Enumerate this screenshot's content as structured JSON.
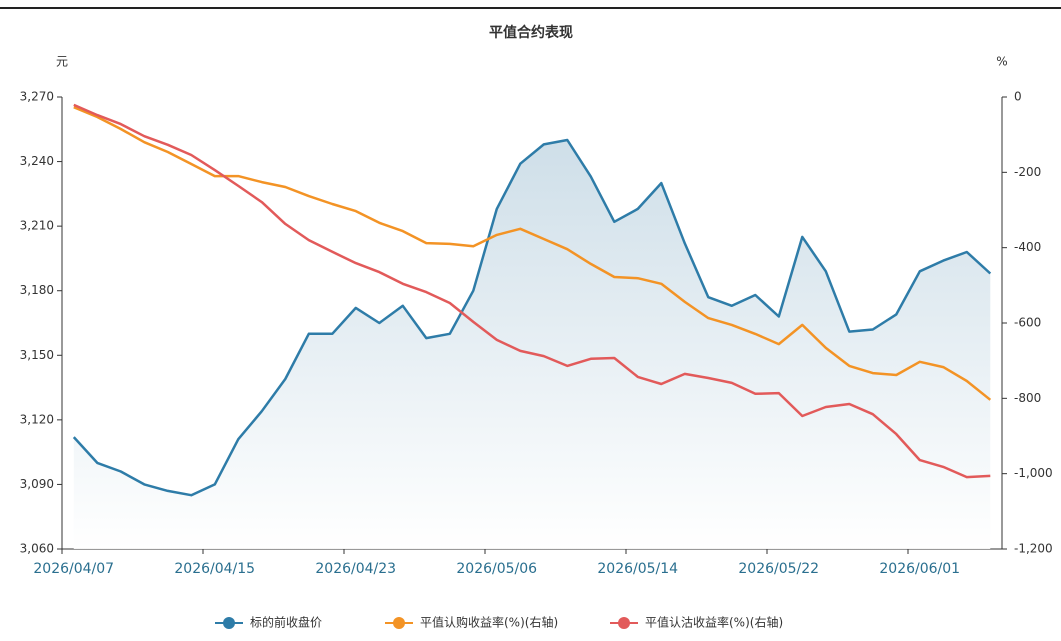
{
  "chart_data": {
    "type": "line",
    "title": "平值合约表现",
    "y_label": "元",
    "y2_label": "%",
    "categories": [
      "2026/04/07",
      null,
      null,
      null,
      null,
      null,
      "2026/04/15",
      null,
      null,
      null,
      null,
      null,
      "2026/04/23",
      null,
      null,
      null,
      null,
      null,
      "2026/05/06",
      null,
      null,
      null,
      null,
      null,
      "2026/05/14",
      null,
      null,
      null,
      null,
      null,
      "2026/05/22",
      null,
      null,
      null,
      null,
      null,
      "2026/06/01",
      null,
      null,
      null
    ],
    "ylim": [
      3060,
      3270
    ],
    "yticks": [
      {
        "value": 3060,
        "label": "3,060"
      },
      {
        "value": 3090,
        "label": "3,090"
      },
      {
        "value": 3120,
        "label": "3,120"
      },
      {
        "value": 3150,
        "label": "3,150"
      },
      {
        "value": 3180,
        "label": "3,180"
      },
      {
        "value": 3210,
        "label": "3,210"
      },
      {
        "value": 3240,
        "label": "3,240"
      },
      {
        "value": 3270,
        "label": "3,270"
      }
    ],
    "y2lim": [
      -1200,
      0
    ],
    "y2ticks": [
      {
        "value": -1200,
        "label": "-1,200"
      },
      {
        "value": -1000,
        "label": "-1,000"
      },
      -800,
      -600,
      -400,
      -200,
      0
    ],
    "series": [
      {
        "name": "标的前收盘价",
        "color": "#2e7ca8",
        "area": true,
        "values": [
          3112,
          3100,
          3096,
          3090,
          3087,
          3085,
          3090,
          3111,
          3124,
          3139,
          3160,
          3160,
          3172,
          3165,
          3173,
          3158,
          3160,
          3180,
          3218,
          3239,
          3248,
          3250,
          3233,
          3212,
          3218,
          3230,
          3202,
          3177,
          3173,
          3178,
          3168,
          3205,
          3189,
          3161,
          3162,
          3169,
          3189,
          3194,
          3198,
          3188
        ]
      },
      {
        "name": "平值认购收益率(%)(右轴)",
        "color": "#f39325",
        "axis": "y2",
        "values": [
          -27,
          -53,
          -85,
          -120,
          -146,
          -178,
          -210,
          -210,
          -226,
          -239,
          -263,
          -284,
          -303,
          -334,
          -356,
          -388,
          -390,
          -396,
          -366,
          -350,
          -377,
          -404,
          -443,
          -478,
          -481,
          -496,
          -544,
          -587,
          -605,
          -629,
          -656,
          -605,
          -666,
          -714,
          -733,
          -738,
          -703,
          -717,
          -754,
          -804
        ]
      },
      {
        "name": "平值认沽收益率(%)(右轴)",
        "color": "#e25a5a",
        "axis": "y2",
        "values": [
          -21,
          -48,
          -72,
          -104,
          -127,
          -154,
          -194,
          -236,
          -279,
          -337,
          -380,
          -411,
          -441,
          -465,
          -496,
          -518,
          -547,
          -597,
          -645,
          -674,
          -688,
          -714,
          -695,
          -693,
          -743,
          -762,
          -735,
          -746,
          -759,
          -788,
          -786,
          -847,
          -823,
          -815,
          -842,
          -895,
          -964,
          -982,
          -1009,
          -1006
        ]
      }
    ]
  }
}
